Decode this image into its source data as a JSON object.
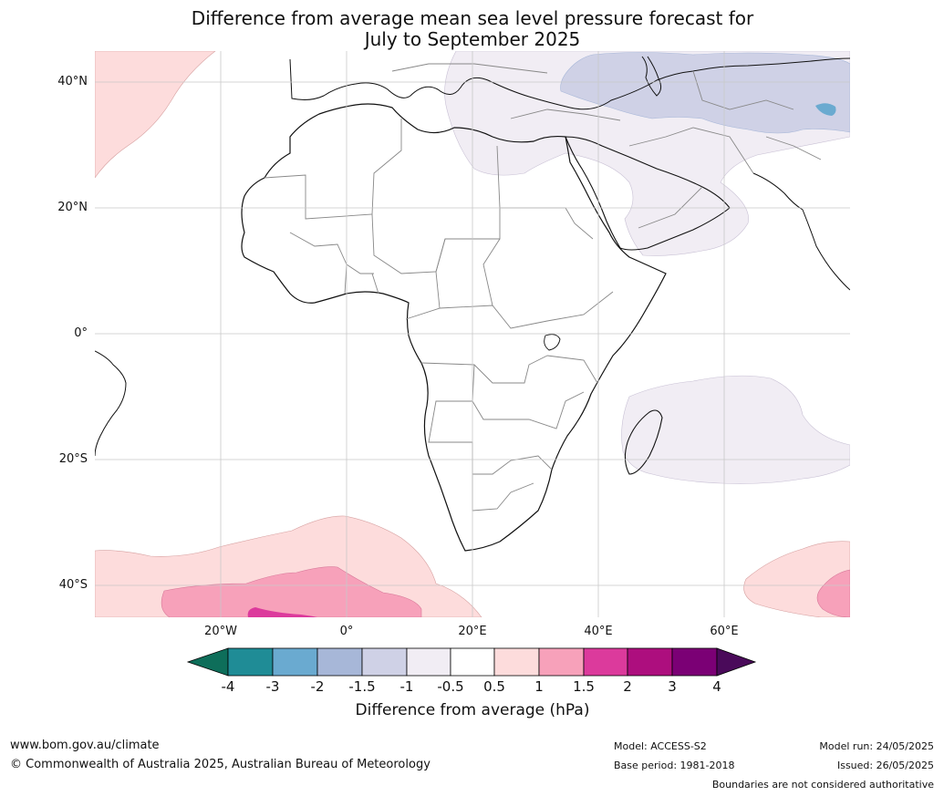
{
  "title_line1": "Difference from average mean sea level pressure forecast for",
  "title_line2": "July to September 2025",
  "lat_labels": [
    "40°N",
    "20°N",
    "0°",
    "20°S",
    "40°S"
  ],
  "lon_labels": [
    "20°W",
    "0°",
    "20°E",
    "40°E",
    "60°E"
  ],
  "colorbar": {
    "labels": [
      "-4",
      "-3",
      "-2",
      "-1.5",
      "-1",
      "-0.5",
      "0.5",
      "1",
      "1.5",
      "2",
      "3",
      "4"
    ],
    "colors": [
      "#0e6e5a",
      "#1f8c96",
      "#6aaad0",
      "#a7b7d8",
      "#cfd1e6",
      "#f1edf4",
      "#ffffff",
      "#fddcdc",
      "#f7a1ba",
      "#dc3a9c",
      "#ad0e7e",
      "#7b0075",
      "#4a0a5a"
    ],
    "title": "Difference from average (hPa)"
  },
  "footer": {
    "website": "www.bom.gov.au/climate",
    "copyright": "© Commonwealth of Australia 2025, Australian Bureau of Meteorology",
    "model": "Model: ACCESS-S2",
    "base_period": "Base period: 1981-2018",
    "model_run": "Model run: 24/05/2025",
    "issued": "Issued: 26/05/2025",
    "disclaimer": "Boundaries are not considered authoritative"
  }
}
